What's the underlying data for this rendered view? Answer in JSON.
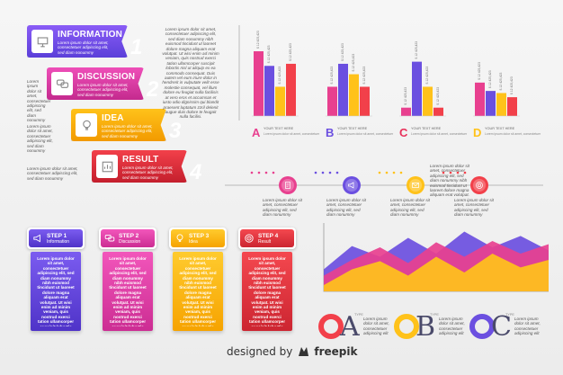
{
  "banners": [
    {
      "title": "INFORMATION",
      "number": "1",
      "text": "Lorem ipsum dolor sit amet, consectetuer adipiscing elit, sed diam nonummy",
      "color1": "#8a5cf6",
      "color2": "#5b3fd9",
      "icon": "presentation-icon"
    },
    {
      "title": "DISCUSSION",
      "number": "2",
      "text": "Lorem ipsum dolor sit amet, consectetuer adipiscing elit, sed diam nonummy",
      "color1": "#ee4fb8",
      "color2": "#c42a8e",
      "icon": "chat-icon"
    },
    {
      "title": "IDEA",
      "number": "3",
      "text": "Lorem ipsum dolor sit amet, consectetuer adipiscing elit, sed diam nonummy",
      "color1": "#ffc21a",
      "color2": "#f29a00",
      "icon": "lightbulb-icon"
    },
    {
      "title": "RESULT",
      "number": "4",
      "text": "Lorem ipsum dolor sit amet, consectetuer adipiscing elit, sed diam nonummy",
      "color1": "#f2404a",
      "color2": "#c41f2d",
      "icon": "chart-icon"
    }
  ],
  "side_texts": [
    "Lorem ipsum dolor sit amet, consectetuer adipiscing elit, sed diam nonummy",
    "Lorem ipsum dolor sit amet, consectetuer adipiscing elit, sed diam nonummy",
    "Lorem ipsum dolor sit amet, consectetuer adipiscing elit, sed diam nonummy"
  ],
  "column_text": "Lorem ipsum dolor sit amet, consectetuer adipiscing elit, sed diam nonummy nibh euismod tincidunt ut laoreet dolore magna aliquam erat volutpat. Ut wisi enim ad minim veniam, quis nostrud exerci tation ullamcorper suscipit lobortis nisl ut aliquip ex ea commodo consequat. Duis autem vel eum iriure dolor in hendrerit in vulputate velit esse molestie consequat, vel illum dolore eu feugiat nulla facilisis at vero eros et accumsan et iusto odio dignissim qui blandit praesent luptatum zzril delenit augue duis dolore te feugait nulla facilisi.",
  "chart_data": {
    "type": "bar",
    "groups": [
      {
        "letter": "A",
        "letter_color": "#e8408f",
        "label": "YOUR TEXT HERE",
        "values": [
          62,
          48,
          28,
          50
        ],
        "value_labels": [
          "$ 12 425,423",
          "$ 12 425,423",
          "$ 12 425,423",
          "$ 12 425,423"
        ]
      },
      {
        "letter": "B",
        "letter_color": "#6b4fe0",
        "label": "YOUR TEXT HERE",
        "values": [
          28,
          50,
          40,
          28
        ],
        "value_labels": [
          "$ 12 425,423",
          "$ 12 425,423",
          "$ 12 425,423",
          "$ 12 425,423"
        ]
      },
      {
        "letter": "C",
        "letter_color": "#e8305a",
        "label": "YOUR TEXT HERE",
        "values": [
          8,
          52,
          28,
          8
        ],
        "value_labels": [
          "$ 12 425,423",
          "$ 12 425,423",
          "$ 12 425,423",
          "$ 12 425,423"
        ]
      },
      {
        "letter": "D",
        "letter_color": "#ffc21a",
        "label": "YOUR TEXT HERE",
        "values": [
          32,
          24,
          22,
          18
        ],
        "value_labels": [
          "$ 12 425,423",
          "$ 12 425,423",
          "$ 12 425,423",
          "$ 12 425,423"
        ]
      }
    ],
    "sub_text": "Lorem ipsum dolor sit amet, consectetuer"
  },
  "timeline": {
    "nodes": [
      {
        "icon": "document-icon",
        "color": "#e8408f",
        "text": "Lorem ipsum dolor sit amet, consectetuer adipiscing elit, sed diam nonummy"
      },
      {
        "icon": "megaphone-icon",
        "color": "#6b4fe0",
        "text": "Lorem ipsum dolor sit amet, consectetuer adipiscing elit, sed diam nonummy"
      },
      {
        "icon": "email-icon",
        "color": "#ffc21a",
        "text": "Lorem ipsum dolor sit amet, consectetuer adipiscing elit, sed diam nonummy"
      },
      {
        "icon": "target-icon",
        "color": "#f2404a",
        "text": "Lorem ipsum dolor sit amet, consectetuer adipiscing elit, sed diam nonummy"
      }
    ],
    "side_text": "Lorem ipsum dolor sit amet, consectetuer adipiscing elit, sed diam nonummy nibh euismod tincidunt ut laoreet dolore magna aliquam erat volutpat."
  },
  "steps": [
    {
      "title": "STEP 1",
      "sub": "Information",
      "color1": "#7b5cf0",
      "color2": "#4f33c8",
      "icon": "megaphone-icon",
      "text": "Lorem ipsum dolor sit amet, consectetuer adipiscing elit, sed diam nonummy nibh euismod tincidunt ut laoreet dolore magna aliquam erat volutpat. Ut wisi enim ad minim veniam, quis nostrud exerci tation ullamcorper suscipit lobortis nisl ut aliquip ex ea commodo"
    },
    {
      "title": "STEP 2",
      "sub": "Discussion",
      "color1": "#f256bb",
      "color2": "#cc2d93",
      "icon": "chat-icon",
      "text": "Lorem ipsum dolor sit amet, consectetuer adipiscing elit, sed diam nonummy nibh euismod tincidunt ut laoreet dolore magna aliquam erat volutpat. Ut wisi enim ad minim veniam, quis nostrud exerci tation ullamcorper suscipit lobortis nisl ut aliquip ex ea commodo"
    },
    {
      "title": "STEP 3",
      "sub": "Idea",
      "color1": "#ffcb2e",
      "color2": "#f6a300",
      "icon": "lightbulb-icon",
      "text": "Lorem ipsum dolor sit amet, consectetuer adipiscing elit, sed diam nonummy nibh euismod tincidunt ut laoreet dolore magna aliquam erat volutpat. Ut wisi enim ad minim veniam, quis nostrud exerci tation ullamcorper suscipit lobortis nisl ut aliquip ex ea commodo"
    },
    {
      "title": "STEP 4",
      "sub": "Result",
      "color1": "#f4484f",
      "color2": "#cc2531",
      "icon": "target-icon",
      "text": "Lorem ipsum dolor sit amet, consectetuer adipiscing elit, sed diam nonummy nibh euismod tincidunt ut laoreet dolore magna aliquam erat volutpat. Ut wisi enim ad minim veniam, quis nostrud exerci tation ullamcorper suscipit lobortis nisl ut aliquip ex ea commodo"
    }
  ],
  "area_chart": {
    "layers": [
      {
        "color": "#6b4fe0",
        "values": [
          0.35,
          0.72,
          0.55,
          0.85,
          0.6,
          0.95,
          0.7,
          0.88,
          0.65
        ]
      },
      {
        "color": "#e8408f",
        "values": [
          0.25,
          0.5,
          0.7,
          0.45,
          0.78,
          0.55,
          0.8,
          0.6,
          0.75
        ]
      },
      {
        "color": "#ffc21a",
        "values": [
          0.1,
          0.35,
          0.48,
          0.25,
          0.55,
          0.3,
          0.6,
          0.38,
          0.5
        ]
      }
    ]
  },
  "types": [
    {
      "letter": "A",
      "ring_color": "#f2404a",
      "label": "TYPE",
      "text": "Lorem ipsum dolor sit amet, consectetuer adipiscing elit"
    },
    {
      "letter": "B",
      "ring_color": "#ffc21a",
      "label": "TYPE",
      "text": "Lorem ipsum dolor sit amet, consectetuer adipiscing elit"
    },
    {
      "letter": "C",
      "ring_color": "#6b4fe0",
      "label": "TYPE",
      "text": "Lorem ipsum dolor sit amet, consectetuer adipiscing elit"
    }
  ],
  "footer": {
    "prefix": "designed by",
    "brand": "freepik"
  }
}
